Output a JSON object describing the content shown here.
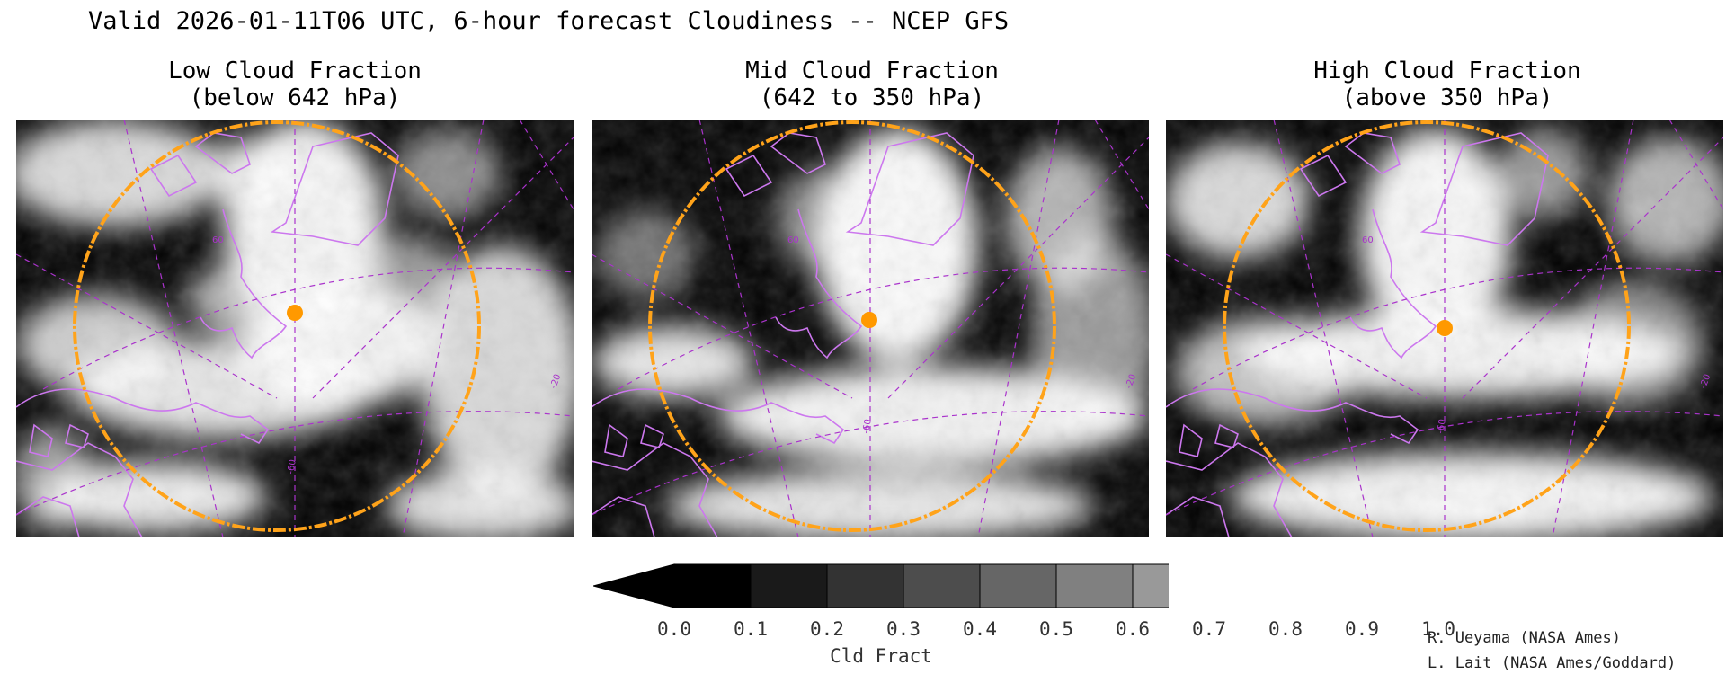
{
  "title": "Valid 2026-01-11T06 UTC, 6-hour forecast Cloudiness -- NCEP GFS",
  "panels": [
    {
      "title_line1": "Low Cloud Fraction",
      "title_line2": "(below 642 hPa)"
    },
    {
      "title_line1": "Mid Cloud Fraction",
      "title_line2": "(642 to 350 hPa)"
    },
    {
      "title_line1": "High Cloud Fraction",
      "title_line2": "(above 350 hPa)"
    }
  ],
  "colorbar": {
    "label": "Cld Fract",
    "ticks": [
      "0.0",
      "0.1",
      "0.2",
      "0.3",
      "0.4",
      "0.5",
      "0.6",
      "0.7",
      "0.8",
      "0.9",
      "1.0"
    ]
  },
  "credits": [
    "R. Ueyama (NASA Ames)",
    "L. Lait (NASA Ames/Goddard)"
  ],
  "map_labels": {
    "lat": "60",
    "lon_left": "-60",
    "lon_right": "-20"
  },
  "colors": {
    "coastline": "#cc77ee",
    "grid": "#aa33cc",
    "range_ring": "#ffa31a",
    "marker": "#ff9900"
  }
}
